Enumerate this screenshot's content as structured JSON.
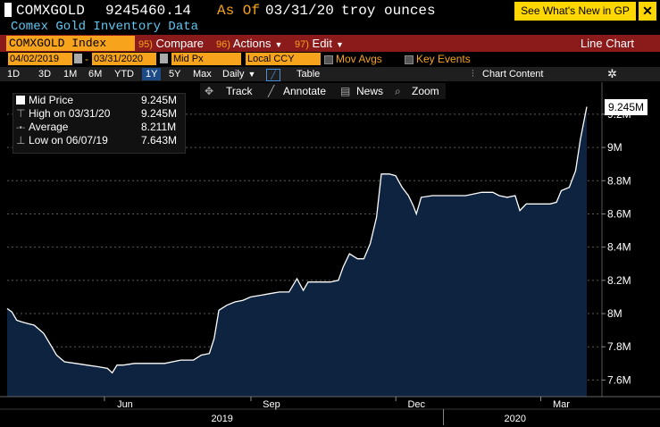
{
  "header": {
    "ticker": "COMXGOLD",
    "value": "9245460.14",
    "as_of_label": "As Of",
    "as_of_date": "03/31/20",
    "units": "troy ounces",
    "whats_new": "See What's New in GP",
    "close": "✕",
    "subtitle": "Comex Gold Inventory Data"
  },
  "toolbar": {
    "security": "COMXGOLD Index",
    "compare_key": "95)",
    "compare": "Compare",
    "actions_key": "96)",
    "actions": "Actions",
    "edit_key": "97)",
    "edit": "Edit",
    "chart_type": "Line Chart"
  },
  "options": {
    "start_date": "04/02/2019",
    "end_date": "03/31/2020",
    "field": "Mid Px",
    "currency": "Local CCY",
    "mov_avgs": "Mov Avgs",
    "key_events": "Key Events"
  },
  "periods": {
    "items": [
      "1D",
      "3D",
      "1M",
      "6M",
      "YTD",
      "1Y",
      "5Y",
      "Max"
    ],
    "selected": "1Y",
    "frequency": "Daily",
    "table": "Table",
    "chart_content": "Chart Content"
  },
  "tools": {
    "track": "Track",
    "annotate": "Annotate",
    "news": "News",
    "zoom": "Zoom"
  },
  "legend": {
    "rows": [
      {
        "label": "Mid Price",
        "value": "9.245M"
      },
      {
        "label": "High on 03/31/20",
        "value": "9.245M"
      },
      {
        "label": "Average",
        "value": "8.211M"
      },
      {
        "label": "Low on 06/07/19",
        "value": "7.643M"
      }
    ]
  },
  "colors": {
    "background": "#000000",
    "area_fill": "#0d2340",
    "line": "#ffffff",
    "accent": "#f7a31c",
    "toolbar_red": "#8b1a1a",
    "subtitle": "#5fc9f3"
  },
  "chart_data": {
    "type": "area",
    "ylim": [
      7.5,
      9.35
    ],
    "y_ticks": [
      "7.6M",
      "7.8M",
      "8M",
      "8.2M",
      "8.4M",
      "8.6M",
      "8.8M",
      "9M",
      "9.2M"
    ],
    "y_tick_values": [
      7.6,
      7.8,
      8.0,
      8.2,
      8.4,
      8.6,
      8.8,
      9.0,
      9.2
    ],
    "last_value_label": "9.245M",
    "last_value": 9.245,
    "x_month_labels": [
      {
        "label": "Jun",
        "date": "2019-06-15"
      },
      {
        "label": "Sep",
        "date": "2019-09-15"
      },
      {
        "label": "Dec",
        "date": "2019-12-15"
      },
      {
        "label": "Mar",
        "date": "2020-03-15"
      }
    ],
    "x_year_labels": [
      {
        "label": "2019",
        "date": "2019-08-15"
      },
      {
        "label": "2020",
        "date": "2020-02-15"
      }
    ],
    "x_range": [
      "2019-04-02",
      "2020-03-31"
    ],
    "series": [
      {
        "points": [
          [
            "2019-04-02",
            8.03
          ],
          [
            "2019-04-05",
            8.01
          ],
          [
            "2019-04-08",
            7.96
          ],
          [
            "2019-04-11",
            7.95
          ],
          [
            "2019-04-15",
            7.94
          ],
          [
            "2019-04-19",
            7.93
          ],
          [
            "2019-04-25",
            7.88
          ],
          [
            "2019-04-30",
            7.8
          ],
          [
            "2019-05-03",
            7.75
          ],
          [
            "2019-05-08",
            7.71
          ],
          [
            "2019-05-15",
            7.7
          ],
          [
            "2019-05-22",
            7.69
          ],
          [
            "2019-05-29",
            7.68
          ],
          [
            "2019-06-04",
            7.67
          ],
          [
            "2019-06-07",
            7.643
          ],
          [
            "2019-06-10",
            7.69
          ],
          [
            "2019-06-14",
            7.69
          ],
          [
            "2019-06-21",
            7.7
          ],
          [
            "2019-07-01",
            7.7
          ],
          [
            "2019-07-10",
            7.7
          ],
          [
            "2019-07-20",
            7.72
          ],
          [
            "2019-07-28",
            7.72
          ],
          [
            "2019-08-02",
            7.75
          ],
          [
            "2019-08-07",
            7.76
          ],
          [
            "2019-08-10",
            7.85
          ],
          [
            "2019-08-13",
            8.02
          ],
          [
            "2019-08-18",
            8.05
          ],
          [
            "2019-08-23",
            8.07
          ],
          [
            "2019-08-28",
            8.08
          ],
          [
            "2019-09-02",
            8.1
          ],
          [
            "2019-09-08",
            8.11
          ],
          [
            "2019-09-14",
            8.12
          ],
          [
            "2019-09-20",
            8.13
          ],
          [
            "2019-09-26",
            8.13
          ],
          [
            "2019-10-01",
            8.21
          ],
          [
            "2019-10-05",
            8.14
          ],
          [
            "2019-10-08",
            8.19
          ],
          [
            "2019-10-15",
            8.19
          ],
          [
            "2019-10-22",
            8.19
          ],
          [
            "2019-10-27",
            8.2
          ],
          [
            "2019-10-30",
            8.28
          ],
          [
            "2019-11-03",
            8.36
          ],
          [
            "2019-11-08",
            8.33
          ],
          [
            "2019-11-12",
            8.33
          ],
          [
            "2019-11-16",
            8.42
          ],
          [
            "2019-11-20",
            8.58
          ],
          [
            "2019-11-23",
            8.84
          ],
          [
            "2019-11-28",
            8.84
          ],
          [
            "2019-12-02",
            8.83
          ],
          [
            "2019-12-06",
            8.76
          ],
          [
            "2019-12-10",
            8.71
          ],
          [
            "2019-12-13",
            8.65
          ],
          [
            "2019-12-15",
            8.6
          ],
          [
            "2019-12-18",
            8.7
          ],
          [
            "2019-12-25",
            8.71
          ],
          [
            "2020-01-05",
            8.71
          ],
          [
            "2020-01-15",
            8.71
          ],
          [
            "2020-01-25",
            8.73
          ],
          [
            "2020-02-01",
            8.73
          ],
          [
            "2020-02-05",
            8.71
          ],
          [
            "2020-02-10",
            8.7
          ],
          [
            "2020-02-15",
            8.71
          ],
          [
            "2020-02-18",
            8.62
          ],
          [
            "2020-02-22",
            8.66
          ],
          [
            "2020-03-01",
            8.66
          ],
          [
            "2020-03-08",
            8.66
          ],
          [
            "2020-03-12",
            8.67
          ],
          [
            "2020-03-15",
            8.74
          ],
          [
            "2020-03-20",
            8.76
          ],
          [
            "2020-03-24",
            8.86
          ],
          [
            "2020-03-27",
            9.05
          ],
          [
            "2020-03-31",
            9.245
          ]
        ]
      }
    ]
  }
}
